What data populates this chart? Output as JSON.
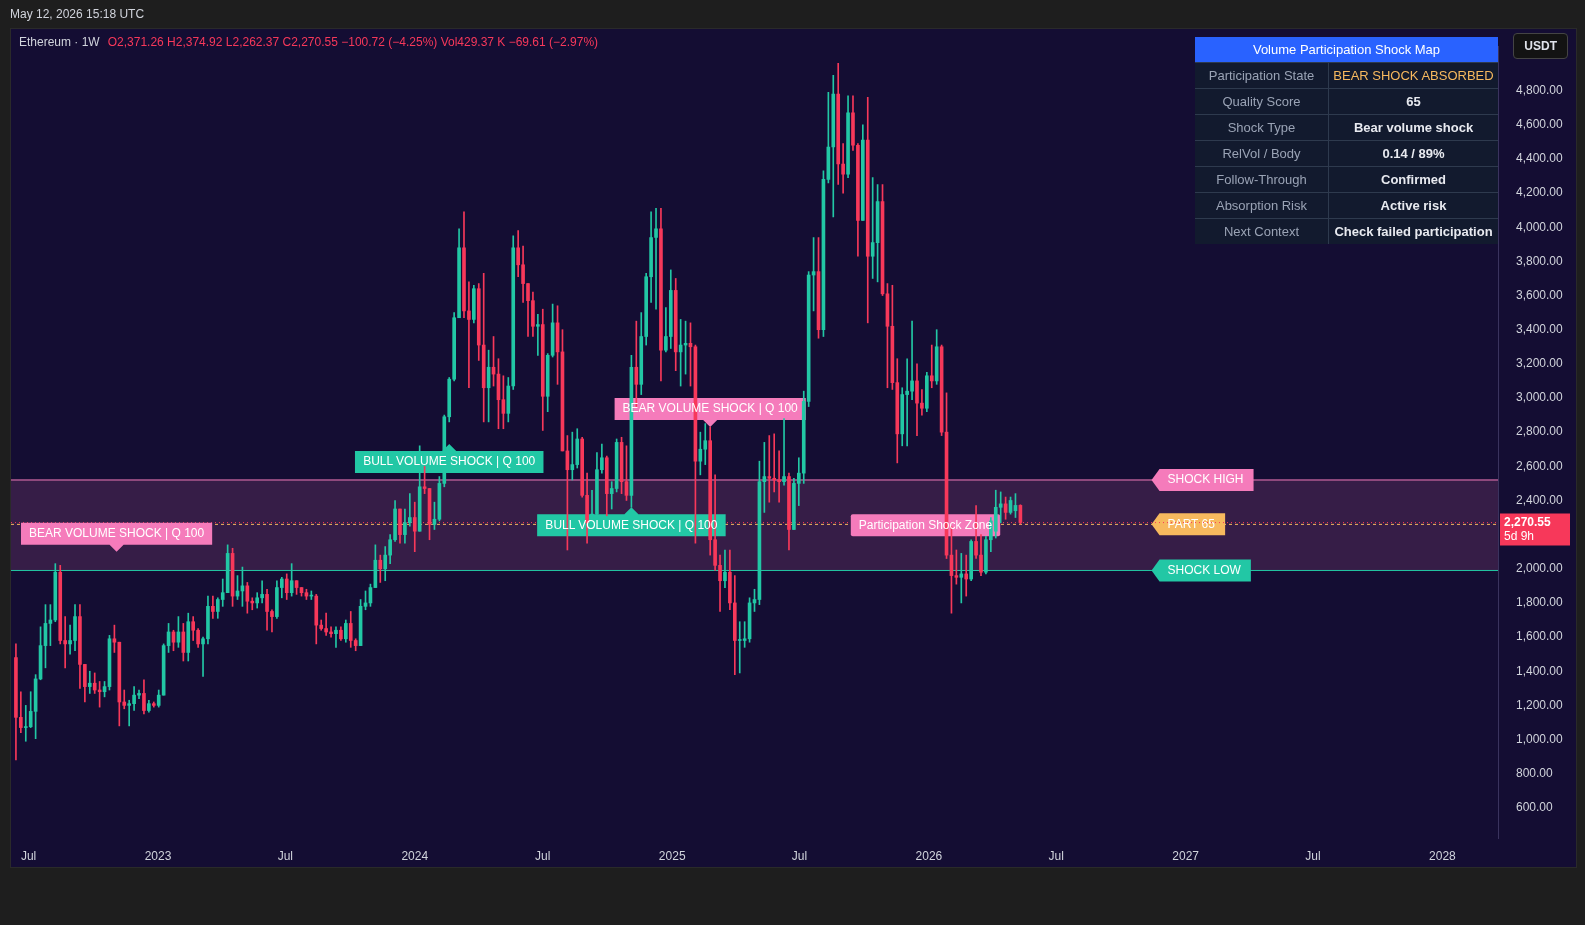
{
  "chart_data": [
    {
      "type": "candlestick",
      "title": "Ethereum · 1W",
      "subtitle": "O2,371.26 H2,374.92 L2,262.37 C2,270.55 −100.72 (−4.25%) Vol429.37 K −69.61 (−2.97%)",
      "ylabel": "USDT",
      "x": [
        "2022-06-13",
        "2022-06-20",
        "2022-06-27",
        "2022-07-04",
        "2022-07-11",
        "2022-07-18",
        "2022-07-25",
        "2022-08-01",
        "2022-08-08",
        "2022-08-15",
        "2022-08-22",
        "2022-08-29",
        "2022-09-05",
        "2022-09-12",
        "2022-09-19",
        "2022-09-26",
        "2022-10-03",
        "2022-10-10",
        "2022-10-17",
        "2022-10-24",
        "2022-10-31",
        "2022-11-07",
        "2022-11-14",
        "2022-11-21",
        "2022-11-28",
        "2022-12-05",
        "2022-12-12",
        "2022-12-19",
        "2022-12-26",
        "2023-01-02",
        "2023-01-09",
        "2023-01-16",
        "2023-01-23",
        "2023-01-30",
        "2023-02-06",
        "2023-02-13",
        "2023-02-20",
        "2023-02-27",
        "2023-03-06",
        "2023-03-13",
        "2023-03-20",
        "2023-03-27",
        "2023-04-03",
        "2023-04-10",
        "2023-04-17",
        "2023-04-24",
        "2023-05-01",
        "2023-05-08",
        "2023-05-15",
        "2023-05-22",
        "2023-05-29",
        "2023-06-05",
        "2023-06-12",
        "2023-06-19",
        "2023-06-26",
        "2023-07-03",
        "2023-07-10",
        "2023-07-17",
        "2023-07-24",
        "2023-07-31",
        "2023-08-07",
        "2023-08-14",
        "2023-08-21",
        "2023-08-28",
        "2023-09-04",
        "2023-09-11",
        "2023-09-18",
        "2023-09-25",
        "2023-10-02",
        "2023-10-09",
        "2023-10-16",
        "2023-10-23",
        "2023-10-30",
        "2023-11-06",
        "2023-11-13",
        "2023-11-20",
        "2023-11-27",
        "2023-12-04",
        "2023-12-11",
        "2023-12-18",
        "2023-12-25",
        "2024-01-01",
        "2024-01-08",
        "2024-01-15",
        "2024-01-22",
        "2024-01-29",
        "2024-02-05",
        "2024-02-12",
        "2024-02-19",
        "2024-02-26",
        "2024-03-04",
        "2024-03-11",
        "2024-03-18",
        "2024-03-25",
        "2024-04-01",
        "2024-04-08",
        "2024-04-15",
        "2024-04-22",
        "2024-04-29",
        "2024-05-06",
        "2024-05-13",
        "2024-05-20",
        "2024-05-27",
        "2024-06-03",
        "2024-06-10",
        "2024-06-17",
        "2024-06-24",
        "2024-07-01",
        "2024-07-08",
        "2024-07-15",
        "2024-07-22",
        "2024-07-29",
        "2024-08-05",
        "2024-08-12",
        "2024-08-19",
        "2024-08-26",
        "2024-09-02",
        "2024-09-09",
        "2024-09-16",
        "2024-09-23",
        "2024-09-30",
        "2024-10-07",
        "2024-10-14",
        "2024-10-21",
        "2024-10-28",
        "2024-11-04",
        "2024-11-11",
        "2024-11-18",
        "2024-11-25",
        "2024-12-02",
        "2024-12-09",
        "2024-12-16",
        "2024-12-23",
        "2024-12-30",
        "2025-01-06",
        "2025-01-13",
        "2025-01-20",
        "2025-01-27",
        "2025-02-03",
        "2025-02-10",
        "2025-02-17",
        "2025-02-24",
        "2025-03-03",
        "2025-03-10",
        "2025-03-17",
        "2025-03-24",
        "2025-03-31",
        "2025-04-07",
        "2025-04-14",
        "2025-04-21",
        "2025-04-28",
        "2025-05-05",
        "2025-05-12",
        "2025-05-19",
        "2025-05-26",
        "2025-06-02",
        "2025-06-09",
        "2025-06-16",
        "2025-06-23",
        "2025-06-30",
        "2025-07-07",
        "2025-07-14",
        "2025-07-21",
        "2025-07-28",
        "2025-08-04",
        "2025-08-11",
        "2025-08-18",
        "2025-08-25",
        "2025-09-01",
        "2025-09-08",
        "2025-09-15",
        "2025-09-22",
        "2025-09-29",
        "2025-10-06",
        "2025-10-13",
        "2025-10-20",
        "2025-10-27",
        "2025-11-03",
        "2025-11-10",
        "2025-11-17",
        "2025-11-24",
        "2025-12-01",
        "2025-12-08",
        "2025-12-15",
        "2025-12-22",
        "2025-12-29",
        "2026-01-05",
        "2026-01-12",
        "2026-01-19",
        "2026-01-26",
        "2026-02-02",
        "2026-02-09",
        "2026-02-16",
        "2026-02-23",
        "2026-03-02",
        "2026-03-09",
        "2026-03-16",
        "2026-03-23",
        "2026-03-30",
        "2026-04-06",
        "2026-04-13",
        "2026-04-20",
        "2026-04-27",
        "2026-05-04",
        "2026-05-11"
      ],
      "ohlc": [
        [
          1480,
          1560,
          880,
          1130
        ],
        [
          1130,
          1280,
          1040,
          1070
        ],
        [
          1070,
          1200,
          990,
          1075
        ],
        [
          1075,
          1280,
          1070,
          1165
        ],
        [
          1165,
          1380,
          1005,
          1355
        ],
        [
          1355,
          1660,
          1350,
          1550
        ],
        [
          1550,
          1790,
          1420,
          1680
        ],
        [
          1680,
          1790,
          1550,
          1700
        ],
        [
          1700,
          2030,
          1690,
          1980
        ],
        [
          1980,
          2020,
          1560,
          1580
        ],
        [
          1580,
          1720,
          1420,
          1560
        ],
        [
          1560,
          1670,
          1500,
          1580
        ],
        [
          1580,
          1790,
          1520,
          1720
        ],
        [
          1720,
          1790,
          1300,
          1440
        ],
        [
          1440,
          1440,
          1220,
          1310
        ],
        [
          1310,
          1400,
          1270,
          1330
        ],
        [
          1330,
          1390,
          1270,
          1290
        ],
        [
          1290,
          1340,
          1190,
          1280
        ],
        [
          1280,
          1340,
          1250,
          1310
        ],
        [
          1310,
          1610,
          1290,
          1590
        ],
        [
          1590,
          1670,
          1510,
          1570
        ],
        [
          1570,
          1570,
          1080,
          1220
        ],
        [
          1220,
          1290,
          1180,
          1200
        ],
        [
          1200,
          1230,
          1080,
          1210
        ],
        [
          1210,
          1310,
          1170,
          1260
        ],
        [
          1260,
          1290,
          1240,
          1270
        ],
        [
          1270,
          1350,
          1150,
          1170
        ],
        [
          1170,
          1230,
          1160,
          1210
        ],
        [
          1210,
          1220,
          1190,
          1200
        ],
        [
          1200,
          1290,
          1190,
          1260
        ],
        [
          1260,
          1560,
          1260,
          1550
        ],
        [
          1550,
          1680,
          1510,
          1630
        ],
        [
          1630,
          1640,
          1520,
          1570
        ],
        [
          1570,
          1720,
          1540,
          1630
        ],
        [
          1630,
          1680,
          1460,
          1510
        ],
        [
          1510,
          1740,
          1460,
          1690
        ],
        [
          1690,
          1720,
          1580,
          1640
        ],
        [
          1640,
          1650,
          1540,
          1560
        ],
        [
          1560,
          1600,
          1370,
          1590
        ],
        [
          1590,
          1840,
          1560,
          1780
        ],
        [
          1780,
          1840,
          1710,
          1750
        ],
        [
          1750,
          1830,
          1710,
          1820
        ],
        [
          1820,
          1940,
          1780,
          1860
        ],
        [
          1860,
          2140,
          1860,
          2090
        ],
        [
          2090,
          2120,
          1780,
          1840
        ],
        [
          1840,
          1960,
          1820,
          1870
        ],
        [
          1870,
          2010,
          1780,
          1900
        ],
        [
          1900,
          1920,
          1740,
          1810
        ],
        [
          1810,
          1830,
          1760,
          1800
        ],
        [
          1800,
          1860,
          1770,
          1830
        ],
        [
          1830,
          1930,
          1800,
          1850
        ],
        [
          1850,
          1880,
          1640,
          1750
        ],
        [
          1750,
          1760,
          1630,
          1720
        ],
        [
          1720,
          1930,
          1710,
          1890
        ],
        [
          1890,
          1950,
          1830,
          1940
        ],
        [
          1940,
          1970,
          1820,
          1860
        ],
        [
          1860,
          2030,
          1840,
          1930
        ],
        [
          1930,
          1930,
          1850,
          1890
        ],
        [
          1890,
          1890,
          1840,
          1860
        ],
        [
          1860,
          1880,
          1820,
          1840
        ],
        [
          1840,
          1870,
          1820,
          1840
        ],
        [
          1840,
          1850,
          1560,
          1670
        ],
        [
          1670,
          1700,
          1640,
          1650
        ],
        [
          1650,
          1740,
          1610,
          1630
        ],
        [
          1630,
          1660,
          1600,
          1620
        ],
        [
          1620,
          1660,
          1540,
          1640
        ],
        [
          1640,
          1660,
          1580,
          1590
        ],
        [
          1590,
          1700,
          1570,
          1680
        ],
        [
          1680,
          1750,
          1540,
          1580
        ],
        [
          1580,
          1590,
          1520,
          1550
        ],
        [
          1550,
          1820,
          1550,
          1780
        ],
        [
          1780,
          1870,
          1760,
          1800
        ],
        [
          1800,
          1910,
          1780,
          1890
        ],
        [
          1890,
          2140,
          1890,
          2050
        ],
        [
          2050,
          2080,
          1920,
          2000
        ],
        [
          2000,
          2130,
          1930,
          2080
        ],
        [
          2080,
          2200,
          2030,
          2170
        ],
        [
          2170,
          2400,
          2160,
          2350
        ],
        [
          2350,
          2350,
          2150,
          2200
        ],
        [
          2200,
          2350,
          2150,
          2270
        ],
        [
          2270,
          2440,
          2250,
          2300
        ],
        [
          2300,
          2390,
          2100,
          2220
        ],
        [
          2220,
          2720,
          2220,
          2480
        ],
        [
          2480,
          2600,
          2440,
          2470
        ],
        [
          2470,
          2470,
          2170,
          2260
        ],
        [
          2260,
          2390,
          2230,
          2290
        ],
        [
          2290,
          2540,
          2280,
          2500
        ],
        [
          2500,
          2900,
          2480,
          2890
        ],
        [
          2890,
          3120,
          2860,
          3110
        ],
        [
          3110,
          3500,
          3100,
          3470
        ],
        [
          3470,
          3990,
          3470,
          3880
        ],
        [
          3880,
          4090,
          3470,
          3510
        ],
        [
          3510,
          3680,
          3060,
          3460
        ],
        [
          3460,
          3660,
          3440,
          3640
        ],
        [
          3640,
          3670,
          3220,
          3310
        ],
        [
          3310,
          3730,
          2860,
          3060
        ],
        [
          3060,
          3280,
          2860,
          3180
        ],
        [
          3180,
          3360,
          3070,
          3140
        ],
        [
          3140,
          3230,
          2820,
          2990
        ],
        [
          2990,
          3130,
          2820,
          2910
        ],
        [
          2910,
          3120,
          2860,
          3070
        ],
        [
          3070,
          3950,
          3050,
          3880
        ],
        [
          3880,
          3980,
          3710,
          3780
        ],
        [
          3780,
          3890,
          3560,
          3670
        ],
        [
          3670,
          3670,
          3360,
          3570
        ],
        [
          3570,
          3620,
          3360,
          3420
        ],
        [
          3420,
          3490,
          3250,
          3430
        ],
        [
          3430,
          3520,
          2810,
          3010
        ],
        [
          3010,
          3260,
          2920,
          3250
        ],
        [
          3250,
          3550,
          3240,
          3440
        ],
        [
          3440,
          3540,
          3080,
          3270
        ],
        [
          3270,
          3400,
          2690,
          2690
        ],
        [
          2690,
          2780,
          2110,
          2580
        ],
        [
          2580,
          2800,
          2520,
          2610
        ],
        [
          2610,
          2820,
          2590,
          2760
        ],
        [
          2760,
          2770,
          2420,
          2430
        ],
        [
          2430,
          2560,
          2150,
          2270
        ],
        [
          2270,
          2460,
          2260,
          2320
        ],
        [
          2320,
          2680,
          2270,
          2580
        ],
        [
          2580,
          2730,
          2560,
          2650
        ],
        [
          2650,
          2660,
          2310,
          2440
        ],
        [
          2440,
          2510,
          2350,
          2470
        ],
        [
          2470,
          2760,
          2450,
          2740
        ],
        [
          2740,
          2770,
          2440,
          2510
        ],
        [
          2510,
          2720,
          2400,
          2430
        ],
        [
          2430,
          3250,
          2360,
          3180
        ],
        [
          3180,
          3450,
          2950,
          3080
        ],
        [
          3080,
          3500,
          3020,
          3360
        ],
        [
          3360,
          3730,
          3310,
          3710
        ],
        [
          3710,
          4090,
          3560,
          3940
        ],
        [
          3940,
          4110,
          3520,
          3990
        ],
        [
          3990,
          4110,
          3100,
          3280
        ],
        [
          3280,
          3530,
          3270,
          3360
        ],
        [
          3360,
          3750,
          3290,
          3630
        ],
        [
          3630,
          3700,
          3160,
          3270
        ],
        [
          3270,
          3460,
          3070,
          3310
        ],
        [
          3310,
          3450,
          3140,
          3320
        ],
        [
          3320,
          3440,
          3070,
          3300
        ],
        [
          3300,
          3310,
          2150,
          2630
        ],
        [
          2630,
          2800,
          2550,
          2700
        ],
        [
          2700,
          2850,
          2610,
          2750
        ],
        [
          2750,
          2830,
          2080,
          2170
        ],
        [
          2170,
          2550,
          1990,
          2020
        ],
        [
          2020,
          2080,
          1750,
          1930
        ],
        [
          1930,
          2110,
          1890,
          1980
        ],
        [
          1980,
          2110,
          1760,
          1800
        ],
        [
          1800,
          1960,
          1380,
          1580
        ],
        [
          1580,
          1690,
          1390,
          1580
        ],
        [
          1580,
          1690,
          1540,
          1590
        ],
        [
          1590,
          1830,
          1570,
          1800
        ],
        [
          1800,
          1880,
          1750,
          1820
        ],
        [
          1820,
          2630,
          1790,
          2510
        ],
        [
          2510,
          2740,
          2330,
          2540
        ],
        [
          2540,
          2780,
          2390,
          2530
        ],
        [
          2530,
          2790,
          2450,
          2520
        ],
        [
          2520,
          2690,
          2390,
          2510
        ],
        [
          2510,
          2880,
          2490,
          2540
        ],
        [
          2540,
          2560,
          2110,
          2230
        ],
        [
          2230,
          2530,
          2230,
          2500
        ],
        [
          2500,
          2650,
          2370,
          2560
        ],
        [
          2560,
          3040,
          2500,
          2980
        ],
        [
          2980,
          3740,
          2950,
          3720
        ],
        [
          3720,
          3940,
          3510,
          3740
        ],
        [
          3740,
          3940,
          3350,
          3400
        ],
        [
          3400,
          4330,
          3360,
          4280
        ],
        [
          4280,
          4790,
          4260,
          4470
        ],
        [
          4470,
          4890,
          4060,
          4780
        ],
        [
          4780,
          4960,
          4250,
          4370
        ],
        [
          4370,
          4490,
          4200,
          4310
        ],
        [
          4310,
          4770,
          4290,
          4670
        ],
        [
          4670,
          4770,
          4450,
          4480
        ],
        [
          4480,
          4490,
          3830,
          4040
        ],
        [
          4040,
          4600,
          4040,
          4510
        ],
        [
          4510,
          4760,
          3440,
          3830
        ],
        [
          3830,
          4290,
          3700,
          3910
        ],
        [
          3910,
          4250,
          3680,
          4150
        ],
        [
          4150,
          4250,
          3600,
          3610
        ],
        [
          3610,
          3670,
          3060,
          3420
        ],
        [
          3420,
          3660,
          3050,
          3090
        ],
        [
          3090,
          3230,
          2620,
          2790
        ],
        [
          2790,
          3060,
          2720,
          3020
        ],
        [
          3020,
          3230,
          2720,
          3040
        ],
        [
          3040,
          3450,
          2990,
          3100
        ],
        [
          3100,
          3200,
          2780,
          2970
        ],
        [
          2970,
          3050,
          2900,
          2940
        ],
        [
          2940,
          3150,
          2920,
          3130
        ],
        [
          3130,
          3310,
          3060,
          3100
        ],
        [
          3100,
          3400,
          3080,
          3300
        ],
        [
          3300,
          3310,
          2780,
          2800
        ],
        [
          2800,
          3030,
          2060,
          2080
        ],
        [
          2080,
          2250,
          1740,
          1960
        ],
        [
          1960,
          2110,
          1910,
          1950
        ],
        [
          1950,
          2090,
          1800,
          1970
        ],
        [
          1970,
          2080,
          1840,
          1940
        ],
        [
          1940,
          2170,
          1930,
          2160
        ],
        [
          2160,
          2370,
          2060,
          2080
        ],
        [
          2080,
          2200,
          1960,
          1980
        ],
        [
          1980,
          2190,
          1970,
          2170
        ],
        [
          2170,
          2300,
          2100,
          2280
        ],
        [
          2220,
          2460,
          2180,
          2360
        ],
        [
          2360,
          2450,
          2270,
          2380
        ],
        [
          2380,
          2420,
          2290,
          2330
        ],
        [
          2330,
          2420,
          2320,
          2400
        ],
        [
          2340,
          2440,
          2300,
          2371
        ],
        [
          2371.26,
          2374.92,
          2262.37,
          2270.55
        ]
      ],
      "xlim": [
        "2022-06-06",
        "2028-03-20"
      ],
      "xticks": [
        {
          "value": "2022-07-01",
          "label": "Jul"
        },
        {
          "value": "2023-01-01",
          "label": "2023"
        },
        {
          "value": "2023-07-01",
          "label": "Jul"
        },
        {
          "value": "2024-01-01",
          "label": "2024"
        },
        {
          "value": "2024-07-01",
          "label": "Jul"
        },
        {
          "value": "2025-01-01",
          "label": "2025"
        },
        {
          "value": "2025-07-01",
          "label": "Jul"
        },
        {
          "value": "2026-01-01",
          "label": "2026"
        },
        {
          "value": "2026-07-01",
          "label": "Jul"
        },
        {
          "value": "2027-01-01",
          "label": "2027"
        },
        {
          "value": "2027-07-01",
          "label": "Jul"
        },
        {
          "value": "2028-01-01",
          "label": "2028"
        }
      ],
      "ylim": [
        420,
        5060
      ],
      "yticks": [
        {
          "value": 600,
          "label": "600.00"
        },
        {
          "value": 800,
          "label": "800.00"
        },
        {
          "value": 1000,
          "label": "1,000.00"
        },
        {
          "value": 1200,
          "label": "1,200.00"
        },
        {
          "value": 1400,
          "label": "1,400.00"
        },
        {
          "value": 1600,
          "label": "1,600.00"
        },
        {
          "value": 1800,
          "label": "1,800.00"
        },
        {
          "value": 2000,
          "label": "2,000.00"
        },
        {
          "value": 2400,
          "label": "2,400.00"
        },
        {
          "value": 2600,
          "label": "2,600.00"
        },
        {
          "value": 2800,
          "label": "2,800.00"
        },
        {
          "value": 3000,
          "label": "3,000.00"
        },
        {
          "value": 3200,
          "label": "3,200.00"
        },
        {
          "value": 3400,
          "label": "3,400.00"
        },
        {
          "value": 3600,
          "label": "3,600.00"
        },
        {
          "value": 3800,
          "label": "3,800.00"
        },
        {
          "value": 4000,
          "label": "4,000.00"
        },
        {
          "value": 4200,
          "label": "4,200.00"
        },
        {
          "value": 4400,
          "label": "4,400.00"
        },
        {
          "value": 4600,
          "label": "4,600.00"
        },
        {
          "value": 4800,
          "label": "4,800.00"
        }
      ],
      "bands": [
        {
          "axis": "y",
          "from": 1990,
          "to": 2520,
          "label": "Participation Shock Zone",
          "color": "#f57bbb"
        }
      ],
      "ref_lines": [
        {
          "axis": "y",
          "value": 2520,
          "label": "SHOCK HIGH",
          "color": "#f57bbb"
        },
        {
          "axis": "y",
          "value": 1990,
          "label": "SHOCK LOW",
          "color": "#22c7a5"
        },
        {
          "axis": "y",
          "value": 2260,
          "label": "PART 65",
          "color": "#f7b95e",
          "line_style": "dashed"
        },
        {
          "axis": "y",
          "value": 2270.55,
          "label": "2,270.55",
          "color": "#f7385a",
          "line_style": "dotted"
        }
      ],
      "annotations": [
        "May 12, 2026 15:18 UTC",
        "5d 9h",
        "BEAR VOLUME SHOCK | Q 100",
        {
          "text": "BULL VOLUME SHOCK | Q 100",
          "x": "2024-02-19",
          "y": 2730
        },
        {
          "text": "BEAR VOLUME SHOCK | Q 100",
          "x": "2025-02-24",
          "y": 2830
        },
        {
          "text": "BULL VOLUME SHOCK | Q 100",
          "x": "2024-11-04",
          "y": 2360
        }
      ],
      "grid": false,
      "legend": false
    },
    {
      "type": "other",
      "title": "Volume Participation Shock Map",
      "annotations": [
        "Participation State",
        "BEAR SHOCK ABSORBED",
        "Quality Score",
        "65",
        "Shock Type",
        "Bear volume shock",
        "RelVol / Body",
        "0.14 / 89%",
        "Follow-Through",
        "Confirmed",
        "Absorption Risk",
        "Active risk",
        "Next Context",
        "Check failed participation"
      ]
    }
  ]
}
